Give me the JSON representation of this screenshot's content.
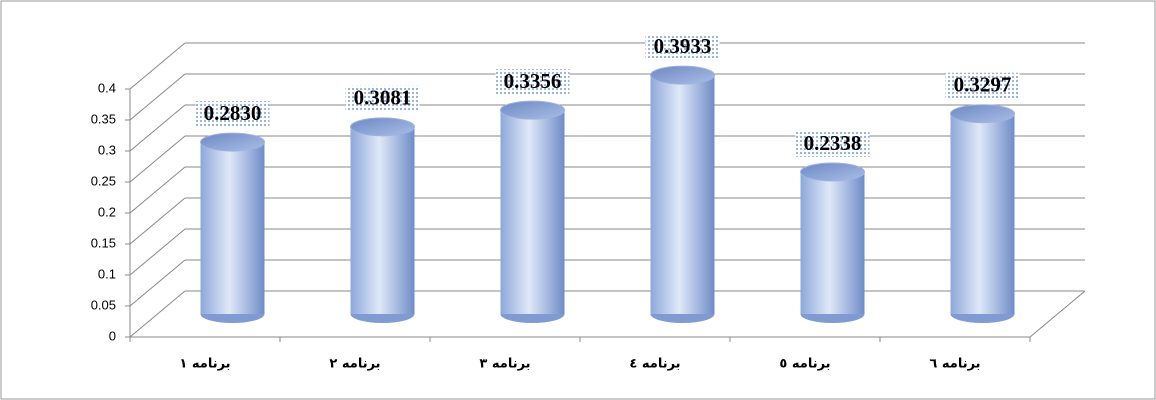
{
  "chart_data": {
    "type": "bar",
    "categories": [
      "برنامه ١",
      "برنامه ٢",
      "برنامه ٣",
      "برنامه ٤",
      "برنامه ٥",
      "برنامه ٦"
    ],
    "values": [
      0.283,
      0.3081,
      0.3356,
      0.3933,
      0.2338,
      0.3297
    ],
    "value_labels": [
      "0.2830",
      "0.3081",
      "0.3356",
      "0.3933",
      "0.2338",
      "0.3297"
    ],
    "color": "#8fa9dc",
    "ylim": [
      0,
      0.4
    ],
    "yticks": [
      0,
      0.05,
      0.1,
      0.15,
      0.2,
      0.25,
      0.3,
      0.35,
      0.4
    ],
    "grid": true
  }
}
